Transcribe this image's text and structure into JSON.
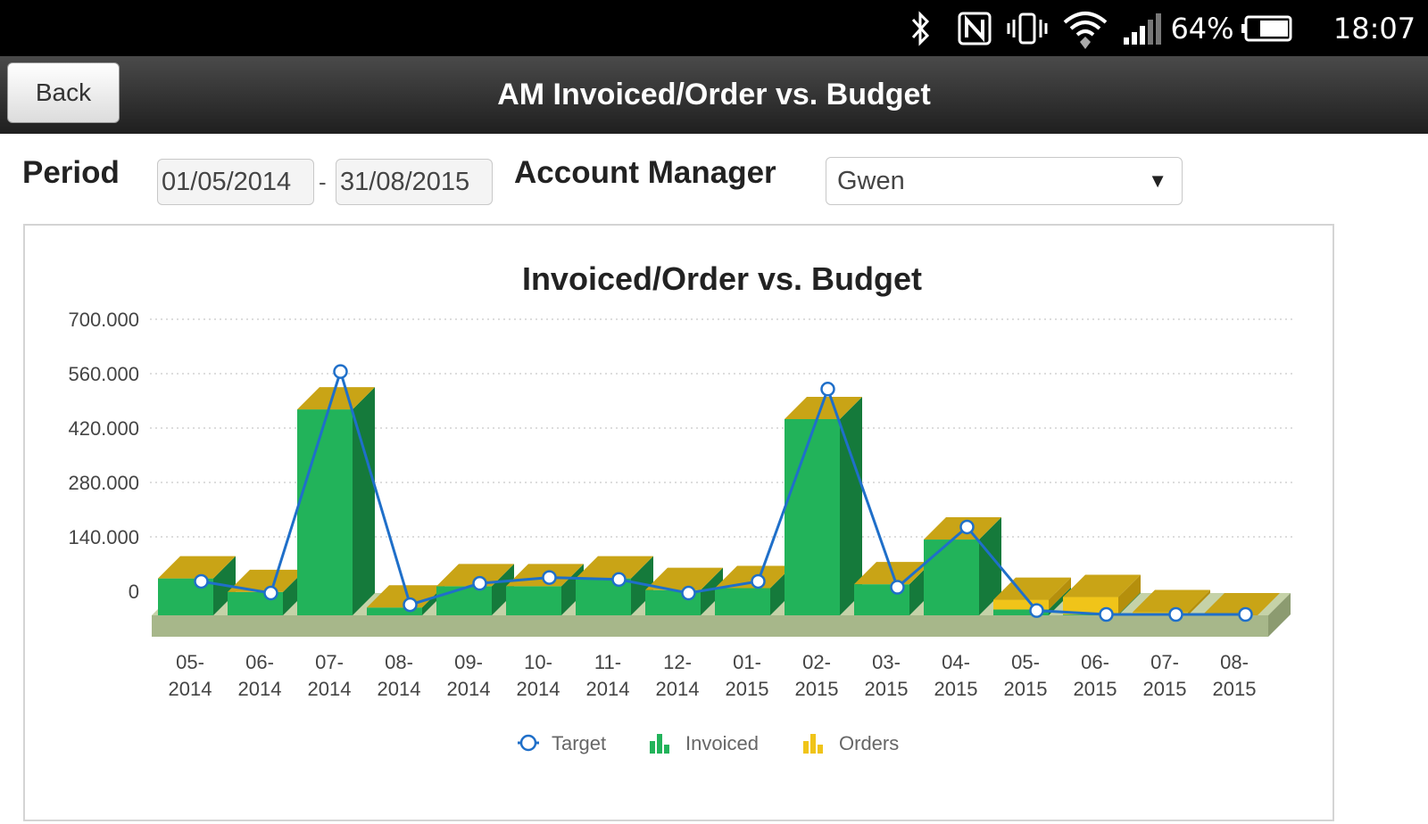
{
  "status_bar": {
    "battery": "64%",
    "time": "18:07",
    "icons": [
      "bluetooth-icon",
      "nfc-icon",
      "vibrate-icon",
      "wifi-icon",
      "signal-icon",
      "battery-icon"
    ]
  },
  "header": {
    "back_label": "Back",
    "title": "AM Invoiced/Order vs. Budget"
  },
  "filters": {
    "period_label": "Period",
    "date_from": "01/05/2014",
    "date_separator": "-",
    "date_to": "31/08/2015",
    "account_manager_label": "Account Manager",
    "account_manager_value": "Gwen"
  },
  "chart_data": {
    "type": "bar",
    "title": "Invoiced/Order vs. Budget",
    "xlabel": "",
    "ylabel": "",
    "ylim": [
      0,
      700000
    ],
    "yticks": [
      0,
      140000,
      280000,
      420000,
      560000,
      700000
    ],
    "ytick_labels": [
      "0",
      "140.000",
      "280.000",
      "420.000",
      "560.000",
      "700.000"
    ],
    "grid": true,
    "legend_position": "bottom",
    "categories": [
      [
        "05-",
        "2014"
      ],
      [
        "06-",
        "2014"
      ],
      [
        "07-",
        "2014"
      ],
      [
        "08-",
        "2014"
      ],
      [
        "09-",
        "2014"
      ],
      [
        "10-",
        "2014"
      ],
      [
        "11-",
        "2014"
      ],
      [
        "12-",
        "2014"
      ],
      [
        "01-",
        "2015"
      ],
      [
        "02-",
        "2015"
      ],
      [
        "03-",
        "2015"
      ],
      [
        "04-",
        "2015"
      ],
      [
        "05-",
        "2015"
      ],
      [
        "06-",
        "2015"
      ],
      [
        "07-",
        "2015"
      ],
      [
        "08-",
        "2015"
      ]
    ],
    "series": [
      {
        "name": "Target",
        "kind": "line",
        "color": "#1f6fc9",
        "values": [
          85000,
          55000,
          625000,
          25000,
          80000,
          95000,
          90000,
          55000,
          85000,
          580000,
          70000,
          225000,
          10000,
          0,
          0,
          0
        ]
      },
      {
        "name": "Invoiced",
        "kind": "bar",
        "color": "#22b35a",
        "values": [
          95000,
          60000,
          530000,
          20000,
          75000,
          75000,
          95000,
          65000,
          70000,
          505000,
          80000,
          195000,
          15000,
          2000,
          0,
          0
        ]
      },
      {
        "name": "Orders",
        "kind": "bar",
        "color": "#f0c419",
        "values": [
          0,
          0,
          0,
          0,
          0,
          0,
          0,
          0,
          0,
          0,
          0,
          0,
          25000,
          45000,
          8000,
          0
        ]
      }
    ]
  }
}
